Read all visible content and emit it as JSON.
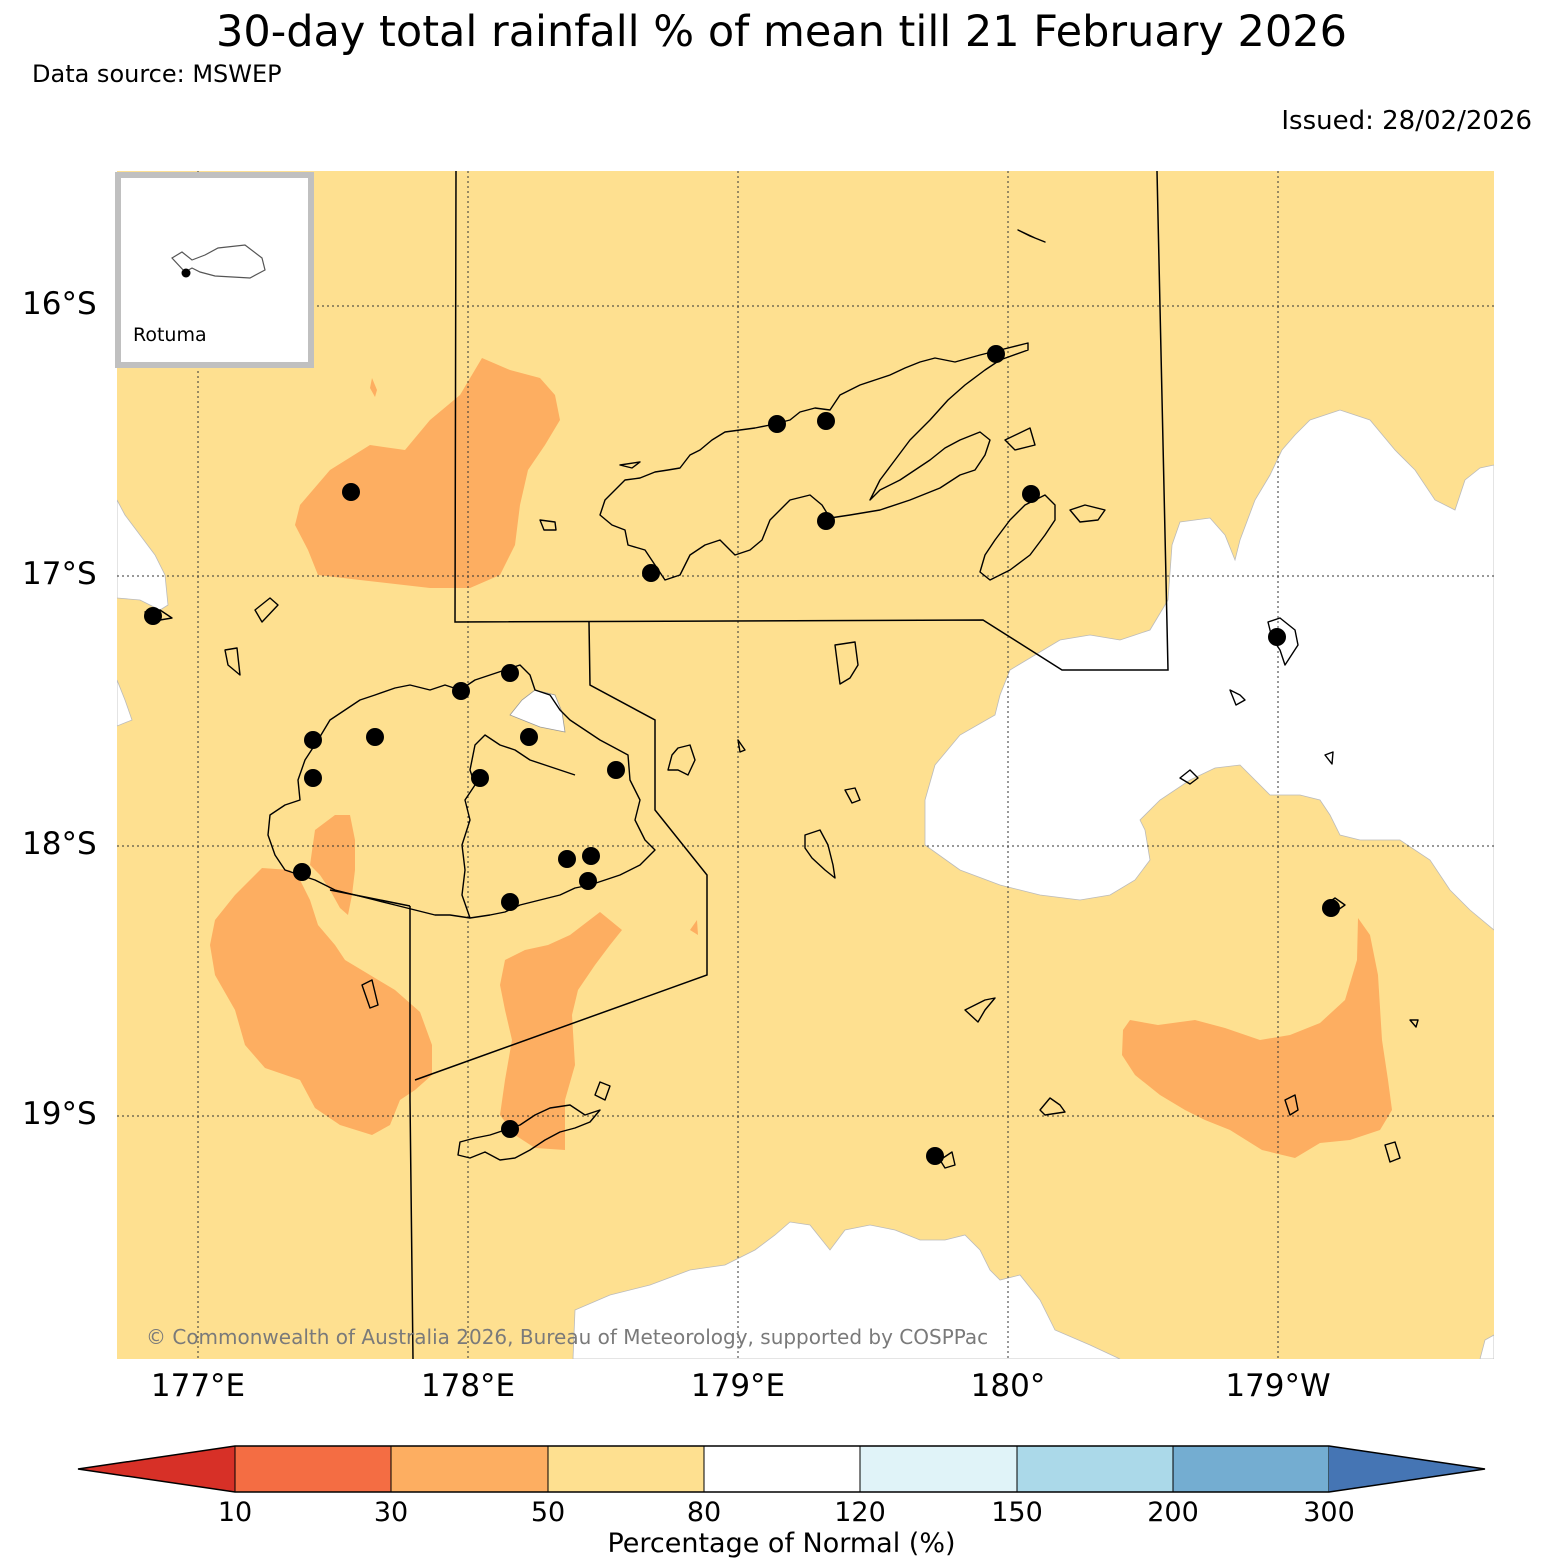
{
  "title": "30-day total rainfall % of mean till 21 February 2026",
  "data_source": "Data source: MSWEP",
  "issued": "Issued: 28/02/2026",
  "copyright": "© Commonwealth of Australia 2026, Bureau of Meteorology, supported by COSPPac",
  "inset_label": "Rotuma",
  "lat_labels": [
    "16°S",
    "17°S",
    "18°S",
    "19°S"
  ],
  "lon_labels": [
    "177°E",
    "178°E",
    "179°E",
    "180°",
    "179°W"
  ],
  "colorbar": {
    "title": "Percentage of Normal (%)",
    "ticks": [
      "10",
      "30",
      "50",
      "80",
      "120",
      "150",
      "200",
      "300"
    ],
    "colors": [
      "#d73027",
      "#f46d43",
      "#fdae61",
      "#fee090",
      "#ffffff",
      "#e0f3f8",
      "#abd9e9",
      "#74add1",
      "#4575b4"
    ]
  },
  "map_colors": {
    "dominant_class": "#fee090",
    "dry_class": "#fdae61",
    "normal_class": "#ffffff"
  }
}
